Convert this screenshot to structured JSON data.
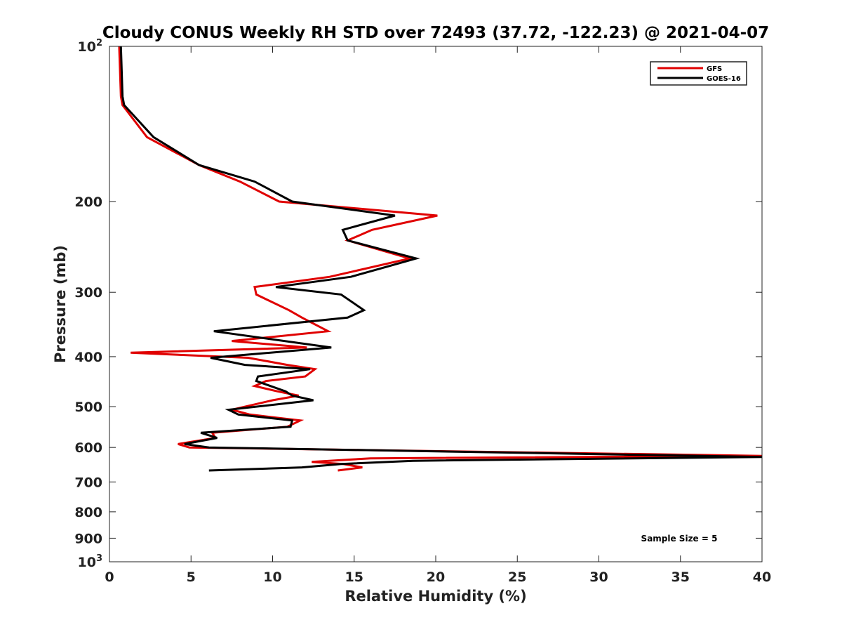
{
  "chart_data": {
    "type": "line",
    "title": "Cloudy CONUS Weekly RH STD over 72493 (37.72, -122.23) @ 2021-04-07",
    "xlabel": "Relative Humidity (%)",
    "ylabel": "Pressure (mb)",
    "xlim": [
      0,
      40
    ],
    "ylim": [
      100,
      1000
    ],
    "y_scale": "log",
    "y_reversed": true,
    "x_ticks": [
      "0",
      "5",
      "10",
      "15",
      "20",
      "25",
      "30",
      "35",
      "40"
    ],
    "y_ticks": [
      {
        "value": 100,
        "label": "10",
        "sup": "2"
      },
      {
        "value": 200,
        "label": "200"
      },
      {
        "value": 300,
        "label": "300"
      },
      {
        "value": 400,
        "label": "400"
      },
      {
        "value": 500,
        "label": "500"
      },
      {
        "value": 600,
        "label": "600"
      },
      {
        "value": 700,
        "label": "700"
      },
      {
        "value": 800,
        "label": "800"
      },
      {
        "value": 900,
        "label": "900"
      },
      {
        "value": 1000,
        "label": "10",
        "sup": "3"
      }
    ],
    "legend_position": "top-right",
    "annotation": "Sample Size = 5",
    "series": [
      {
        "name": "GFS",
        "color": "#e00000",
        "points": [
          [
            0.6,
            100
          ],
          [
            0.7,
            125
          ],
          [
            0.8,
            130
          ],
          [
            2.3,
            150
          ],
          [
            5.5,
            170
          ],
          [
            8.0,
            183
          ],
          [
            10.4,
            200
          ],
          [
            20.1,
            213
          ],
          [
            16.1,
            227
          ],
          [
            14.6,
            238
          ],
          [
            18.4,
            258
          ],
          [
            13.5,
            280
          ],
          [
            8.9,
            293
          ],
          [
            9.0,
            303
          ],
          [
            11.0,
            325
          ],
          [
            11.8,
            336
          ],
          [
            13.4,
            357
          ],
          [
            7.5,
            373
          ],
          [
            12.1,
            384
          ],
          [
            1.3,
            393
          ],
          [
            8.5,
            402
          ],
          [
            10.9,
            415
          ],
          [
            12.6,
            423
          ],
          [
            12.0,
            437
          ],
          [
            9.6,
            446
          ],
          [
            8.9,
            456
          ],
          [
            10.3,
            467
          ],
          [
            11.6,
            476
          ],
          [
            10.0,
            486
          ],
          [
            7.5,
            507
          ],
          [
            8.6,
            518
          ],
          [
            11.7,
            532
          ],
          [
            10.9,
            547
          ],
          [
            6.3,
            562
          ],
          [
            6.5,
            575
          ],
          [
            4.2,
            591
          ],
          [
            4.9,
            600
          ],
          [
            40.0,
            623
          ],
          [
            16.0,
            630
          ],
          [
            12.4,
            640
          ],
          [
            14.3,
            646
          ],
          [
            15.5,
            656
          ],
          [
            14.0,
            665
          ]
        ]
      },
      {
        "name": "GOES-16",
        "color": "#000000",
        "points": [
          [
            0.7,
            100
          ],
          [
            0.8,
            125
          ],
          [
            0.9,
            130
          ],
          [
            2.7,
            150
          ],
          [
            5.5,
            170
          ],
          [
            8.9,
            183
          ],
          [
            11.2,
            200
          ],
          [
            17.5,
            213
          ],
          [
            14.3,
            227
          ],
          [
            14.6,
            238
          ],
          [
            18.8,
            258
          ],
          [
            14.8,
            280
          ],
          [
            10.2,
            293
          ],
          [
            14.2,
            303
          ],
          [
            15.6,
            325
          ],
          [
            14.6,
            336
          ],
          [
            6.4,
            357
          ],
          [
            13.6,
            384
          ],
          [
            6.2,
            402
          ],
          [
            8.3,
            415
          ],
          [
            12.3,
            423
          ],
          [
            9.1,
            437
          ],
          [
            9.0,
            446
          ],
          [
            10.8,
            467
          ],
          [
            11.2,
            476
          ],
          [
            12.5,
            486
          ],
          [
            7.3,
            507
          ],
          [
            7.9,
            518
          ],
          [
            11.2,
            532
          ],
          [
            11.1,
            547
          ],
          [
            5.6,
            562
          ],
          [
            6.6,
            575
          ],
          [
            4.6,
            591
          ],
          [
            6.1,
            600
          ],
          [
            40.0,
            626
          ],
          [
            18.6,
            637
          ],
          [
            14.2,
            646
          ],
          [
            11.8,
            656
          ],
          [
            6.1,
            665
          ]
        ]
      }
    ]
  }
}
